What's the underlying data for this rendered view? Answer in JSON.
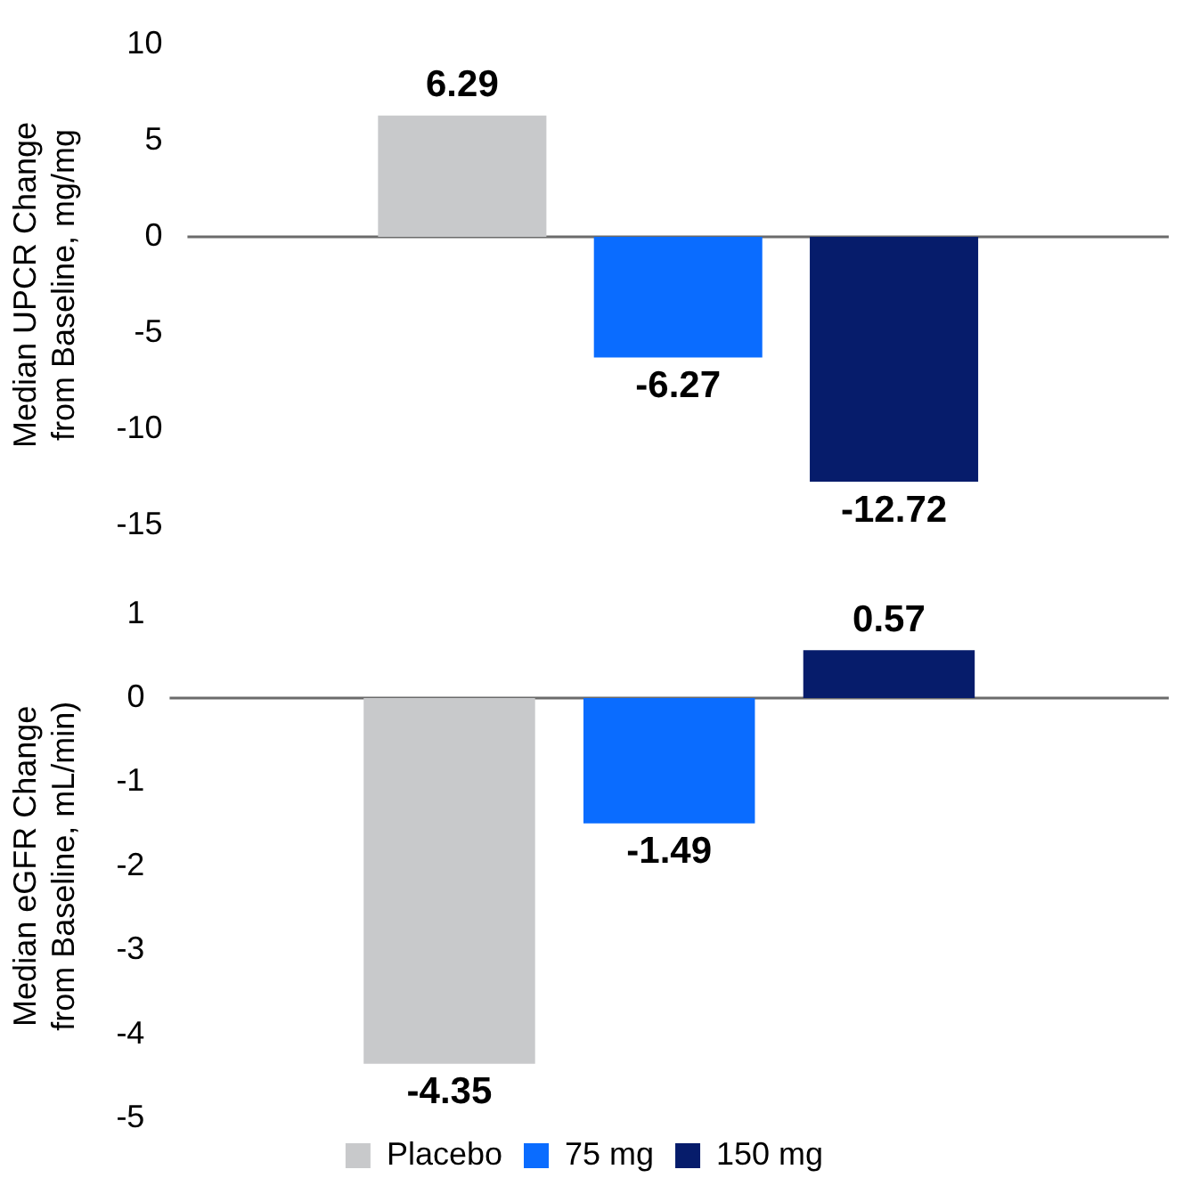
{
  "chart_data": [
    {
      "type": "bar",
      "ylabel": "Median UPCR Change\nfrom Baseline, mg/mg",
      "categories": [
        null
      ],
      "series": [
        {
          "color": "#c8c9cb",
          "values": [
            6.29
          ]
        },
        {
          "color": "#0a6cff",
          "values": [
            -6.27
          ]
        },
        {
          "color": "#061c6b",
          "values": [
            -12.72
          ]
        }
      ],
      "ref_lines": [
        {
          "axis": "y",
          "value": 0,
          "color": "#6b6b6b"
        }
      ],
      "ylim": [
        -15,
        10
      ],
      "yticks": [
        -15,
        -10,
        -5,
        0,
        5,
        10
      ],
      "data_labels": true,
      "grid": false,
      "legend": false,
      "tick_labels": "y"
    },
    {
      "type": "bar",
      "ylabel": "Median eGFR Change\nfrom Baseline, mL/min)",
      "categories": [
        null
      ],
      "series": [
        {
          "name": "Placebo",
          "color": "#c8c9cb",
          "values": [
            -4.35
          ]
        },
        {
          "name": "75 mg",
          "color": "#0a6cff",
          "values": [
            -1.49
          ]
        },
        {
          "name": "150 mg",
          "color": "#061c6b",
          "values": [
            0.57
          ]
        }
      ],
      "ref_lines": [
        {
          "axis": "y",
          "value": 0,
          "color": "#6b6b6b"
        }
      ],
      "ylim": [
        -5,
        1
      ],
      "yticks": [
        -5,
        -4,
        -3,
        -2,
        -1,
        0,
        1
      ],
      "data_labels": true,
      "grid": false,
      "legend": "bottom",
      "tick_labels": "y"
    }
  ]
}
